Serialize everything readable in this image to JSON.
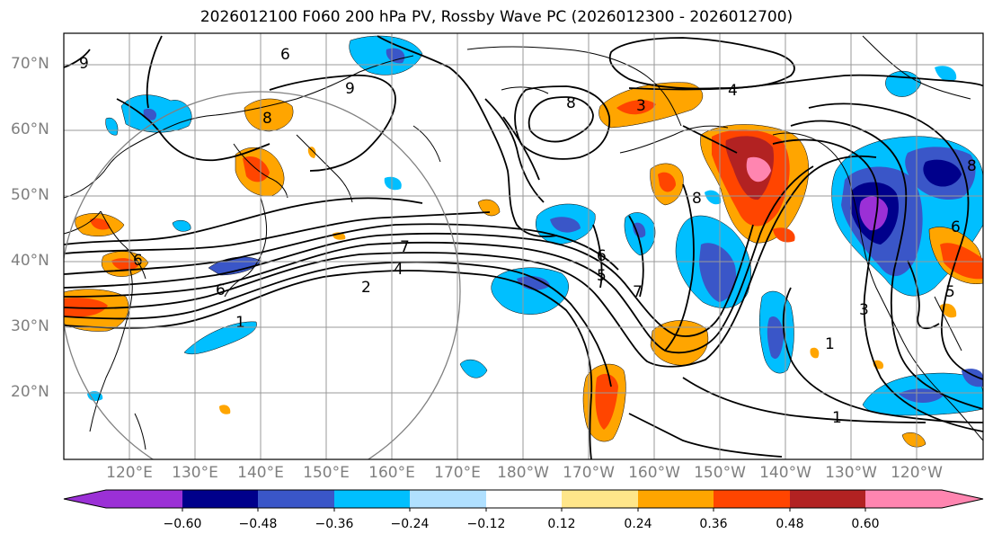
{
  "title": "2026012100 F060 200 hPa PV, Rossby Wave PC (2026012300 - 2026012700)",
  "lat_labels": [
    "70°N",
    "60°N",
    "50°N",
    "40°N",
    "30°N",
    "20°N"
  ],
  "lon_labels": [
    "120°E",
    "130°E",
    "140°E",
    "150°E",
    "160°E",
    "170°E",
    "180°W",
    "170°W",
    "160°W",
    "150°W",
    "140°W",
    "130°W",
    "120°W"
  ],
  "colorbar": {
    "ticks": [
      "−0.60",
      "−0.48",
      "−0.36",
      "−0.24",
      "−0.12",
      "0.12",
      "0.24",
      "0.36",
      "0.48",
      "0.60"
    ],
    "colors": [
      "#9b30d6",
      "#00008b",
      "#3a56c8",
      "#00bfff",
      "#b0e0ff",
      "#ffffff",
      "#ffe68a",
      "#ffa500",
      "#ff4500",
      "#b22222",
      "#ff85b0"
    ]
  },
  "contour_labels": [
    "9",
    "6",
    "9",
    "8",
    "4",
    "3",
    "8",
    "6",
    "7",
    "4",
    "2",
    "1",
    "6",
    "8",
    "6",
    "5",
    "7",
    "8",
    "3",
    "1",
    "1",
    "6",
    "5"
  ],
  "colors": {
    "blue_anom": "#00bfff",
    "mid_blue": "#3a56c8",
    "dark_blue": "#00008b",
    "purple": "#9b30d6",
    "orange": "#ffa500",
    "red_orange": "#ff4500",
    "dark_red": "#b22222",
    "pink": "#ff85b0"
  }
}
